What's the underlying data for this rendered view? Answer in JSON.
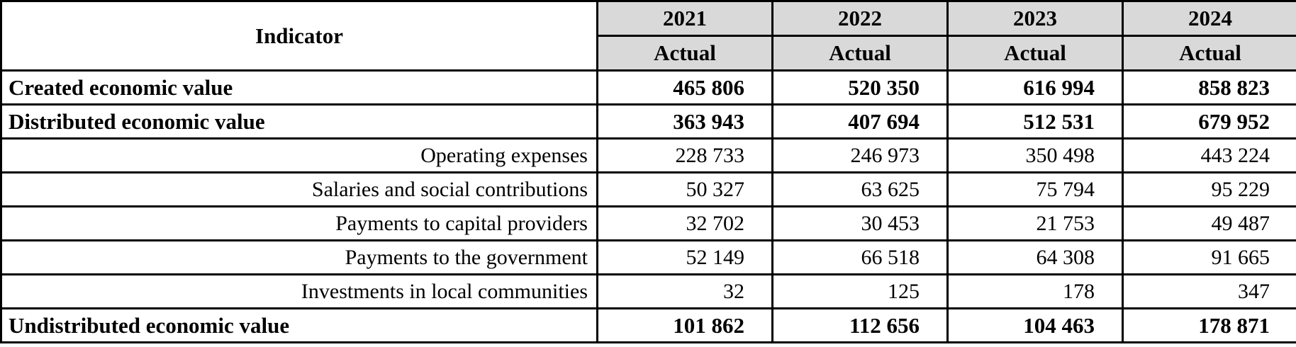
{
  "table": {
    "title": "economic-value-table",
    "header": {
      "indicator_label": "Indicator",
      "years": [
        "2021",
        "2022",
        "2023",
        "2024"
      ],
      "subheader": "Actual"
    },
    "rows": [
      {
        "label": "Created economic value",
        "bold": true,
        "values": [
          "465 806",
          "520 350",
          "616 994",
          "858 823"
        ]
      },
      {
        "label": "Distributed economic value",
        "bold": true,
        "values": [
          "363 943",
          "407 694",
          "512 531",
          "679 952"
        ]
      },
      {
        "label": "Operating expenses",
        "bold": false,
        "values": [
          "228 733",
          "246 973",
          "350 498",
          "443 224"
        ]
      },
      {
        "label": "Salaries and social contributions",
        "bold": false,
        "values": [
          "50 327",
          "63 625",
          "75 794",
          "95 229"
        ]
      },
      {
        "label": "Payments to capital providers",
        "bold": false,
        "values": [
          "32 702",
          "30 453",
          "21 753",
          "49 487"
        ]
      },
      {
        "label": "Payments to the government",
        "bold": false,
        "values": [
          "52 149",
          "66 518",
          "64 308",
          "91 665"
        ]
      },
      {
        "label": "Investments in local communities",
        "bold": false,
        "values": [
          "32",
          "125",
          "178",
          "347"
        ]
      },
      {
        "label": "Undistributed economic value",
        "bold": true,
        "values": [
          "101 862",
          "112 656",
          "104 463",
          "178 871"
        ]
      }
    ],
    "colors": {
      "header_bg": "#d9d9d9",
      "border": "#000000",
      "row_bg": "#ffffff"
    }
  }
}
